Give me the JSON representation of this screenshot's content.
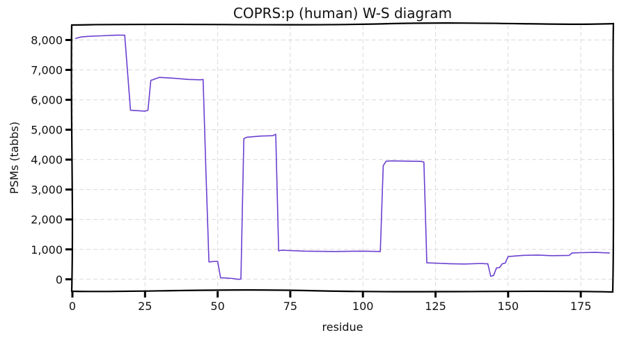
{
  "chart_data": {
    "type": "line",
    "title": "COPRS:p (human) W-S diagram",
    "xlabel": "residue",
    "ylabel": "PSMs (tabbs)",
    "xlim": [
      0,
      186
    ],
    "ylim": [
      -400,
      8500
    ],
    "xticks": [
      0,
      25,
      50,
      75,
      100,
      125,
      150,
      175
    ],
    "xtick_labels": [
      "0",
      "25",
      "50",
      "75",
      "100",
      "125",
      "150",
      "175"
    ],
    "yticks": [
      0,
      1000,
      2000,
      3000,
      4000,
      5000,
      6000,
      7000,
      8000
    ],
    "ytick_labels": [
      "0",
      "1,000",
      "2,000",
      "3,000",
      "4,000",
      "5,000",
      "6,000",
      "7,000",
      "8,000"
    ],
    "grid": true,
    "series": [
      {
        "color": "#6a3fd0",
        "x": [
          1,
          3,
          5,
          10,
          15,
          18,
          19,
          20,
          25,
          26,
          27,
          28,
          29,
          30,
          35,
          40,
          44,
          45,
          46,
          47,
          48,
          49,
          50,
          51,
          55,
          57,
          58,
          59,
          60,
          65,
          69,
          70,
          71,
          72,
          80,
          90,
          100,
          106,
          107,
          108,
          110,
          115,
          120,
          121,
          122,
          130,
          135,
          141,
          142,
          143,
          144,
          145,
          146,
          147,
          148,
          149,
          150,
          155,
          160,
          165,
          171,
          172,
          175,
          180,
          185
        ],
        "y": [
          8050,
          8100,
          8120,
          8140,
          8160,
          8160,
          6900,
          5650,
          5620,
          5650,
          6650,
          6680,
          6720,
          6750,
          6720,
          6680,
          6670,
          6680,
          3500,
          580,
          590,
          600,
          600,
          50,
          30,
          0,
          10,
          4700,
          4750,
          4790,
          4800,
          4850,
          950,
          970,
          940,
          930,
          940,
          930,
          3800,
          3950,
          3960,
          3950,
          3940,
          3920,
          550,
          520,
          510,
          530,
          520,
          520,
          100,
          130,
          380,
          390,
          520,
          540,
          760,
          800,
          810,
          790,
          800,
          880,
          890,
          900,
          880
        ]
      }
    ]
  }
}
